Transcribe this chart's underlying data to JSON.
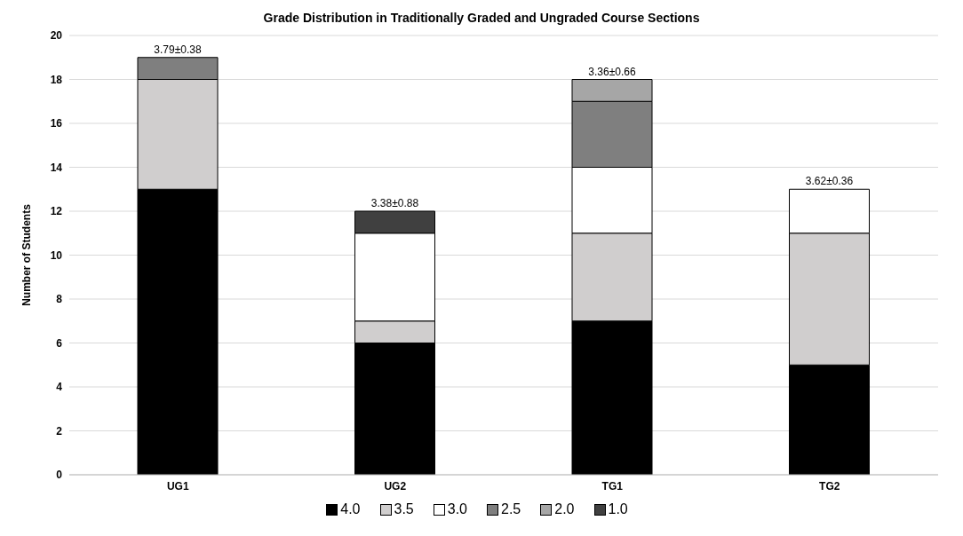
{
  "chart_data": {
    "type": "bar",
    "title": "Grade Distribution in Traditionally Graded and Ungraded Course Sections",
    "ylabel": "Number of Students",
    "categories": [
      "UG1",
      "UG2",
      "TG1",
      "TG2"
    ],
    "stacked": true,
    "series": [
      {
        "name": "4.0",
        "color": "#000000",
        "values": [
          13,
          6,
          7,
          5
        ]
      },
      {
        "name": "3.5",
        "color": "#d0cece",
        "values": [
          5,
          1,
          4,
          6
        ]
      },
      {
        "name": "3.0",
        "color": "#ffffff",
        "values": [
          0,
          4,
          3,
          2
        ]
      },
      {
        "name": "2.5",
        "color": "#7f7f7f",
        "values": [
          1,
          0,
          3,
          0
        ]
      },
      {
        "name": "2.0",
        "color": "#a6a6a6",
        "values": [
          0,
          0,
          1,
          0
        ]
      },
      {
        "name": "1.0",
        "color": "#404040",
        "values": [
          0,
          1,
          0,
          0
        ]
      }
    ],
    "totals": [
      "3.79±0.38",
      "3.38±0.88",
      "3.36±0.66",
      "3.62±0.36"
    ],
    "ylim": [
      0,
      20
    ],
    "yticks": [
      0,
      2,
      4,
      6,
      8,
      10,
      12,
      14,
      16,
      18,
      20
    ],
    "grid": "y",
    "legend": "bottom"
  }
}
